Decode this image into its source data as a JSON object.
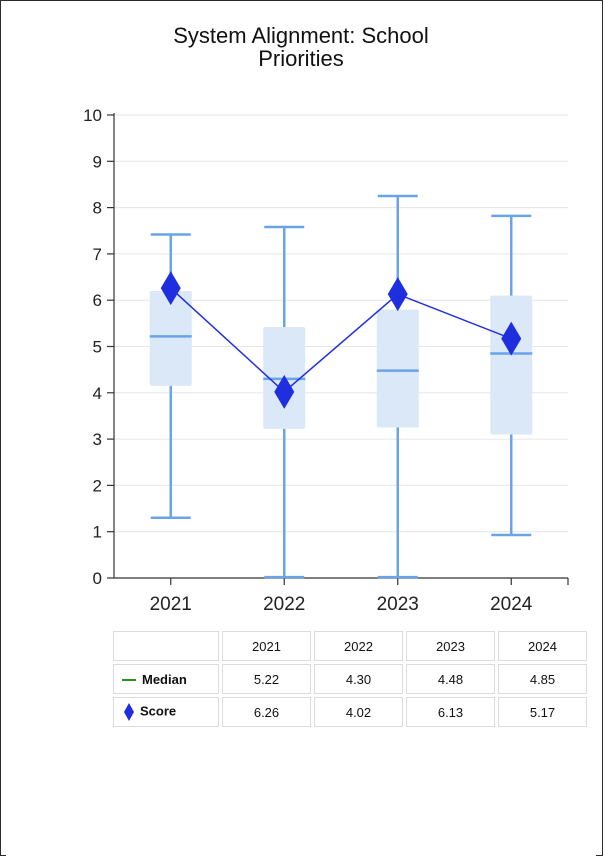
{
  "title_lines": [
    "System Alignment: School",
    "Priorities"
  ],
  "colors": {
    "box_fill": "#dbe8f8",
    "whisker": "#6aa4e8",
    "score": "#1f2fe0",
    "median_legend": "#2e8b2e"
  },
  "chart_data": {
    "type": "boxplot",
    "title": "System Alignment: School Priorities",
    "ylim": [
      0,
      10
    ],
    "yticks": [
      "0",
      "1",
      "2",
      "3",
      "4",
      "5",
      "6",
      "7",
      "8",
      "9",
      "10"
    ],
    "grid": true,
    "categories": [
      "2021",
      "2022",
      "2023",
      "2024"
    ],
    "boxes": [
      {
        "min": 1.3,
        "q1": 4.15,
        "median": 5.22,
        "q3": 6.2,
        "max": 7.42
      },
      {
        "min": 0.02,
        "q1": 3.22,
        "median": 4.3,
        "q3": 5.42,
        "max": 7.58
      },
      {
        "min": 0.02,
        "q1": 3.25,
        "median": 4.48,
        "q3": 5.8,
        "max": 8.25
      },
      {
        "min": 0.93,
        "q1": 3.1,
        "median": 4.85,
        "q3": 6.1,
        "max": 7.82
      }
    ],
    "series": [
      {
        "name": "Score",
        "values": [
          6.26,
          4.02,
          6.13,
          5.17
        ]
      }
    ]
  },
  "table": {
    "headers": [
      "",
      "2021",
      "2022",
      "2023",
      "2024"
    ],
    "rows": [
      {
        "label": "Median",
        "values": [
          "5.22",
          "4.30",
          "4.48",
          "4.85"
        ]
      },
      {
        "label": "Score",
        "values": [
          "6.26",
          "4.02",
          "6.13",
          "5.17"
        ]
      }
    ]
  }
}
